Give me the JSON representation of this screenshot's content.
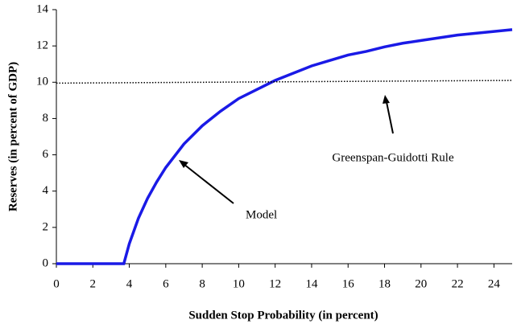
{
  "chart_data": {
    "type": "line",
    "xlabel": "Sudden Stop Probability (in percent)",
    "ylabel": "Reserves (in percent of GDP)",
    "xlim": [
      0,
      25
    ],
    "xticks": [
      0,
      2,
      4,
      6,
      8,
      10,
      12,
      14,
      16,
      18,
      20,
      22,
      24
    ],
    "ylim": [
      0,
      14
    ],
    "yticks": [
      0,
      2,
      4,
      6,
      8,
      10,
      12,
      14
    ],
    "grid": false,
    "series": [
      {
        "name": "Model",
        "color": "#1a1ae6",
        "style": "solid",
        "x": [
          0,
          3.7,
          4,
          4.5,
          5,
          5.5,
          6,
          7,
          8,
          9,
          10,
          11,
          12,
          13,
          14,
          15,
          16,
          17,
          18,
          19,
          20,
          21,
          22,
          23,
          24,
          25
        ],
        "values": [
          0,
          0,
          1.1,
          2.5,
          3.6,
          4.5,
          5.3,
          6.6,
          7.6,
          8.4,
          9.1,
          9.6,
          10.1,
          10.5,
          10.9,
          11.2,
          11.5,
          11.7,
          11.95,
          12.15,
          12.3,
          12.45,
          12.6,
          12.7,
          12.8,
          12.9
        ]
      },
      {
        "name": "Greenspan-Guidotti Rule",
        "color": "#000000",
        "style": "dotted",
        "x": [
          0,
          25
        ],
        "values": [
          9.95,
          10.1
        ]
      }
    ]
  }
}
